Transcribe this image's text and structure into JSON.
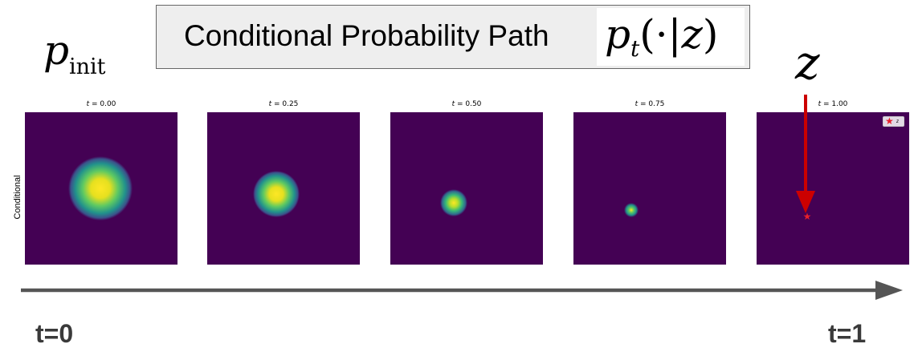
{
  "title": {
    "text": "Conditional Probability Path",
    "math": {
      "p": "p",
      "sub": "t",
      "open": "(·|",
      "var": "z",
      "close": ")"
    }
  },
  "p_init": {
    "p": "p",
    "sub": "init"
  },
  "z_label": "z",
  "row_label": "Conditional",
  "panels": [
    {
      "t_label": "t",
      "value": "= 0.00",
      "t": 0.0,
      "spread": 1.0
    },
    {
      "t_label": "t",
      "value": "= 0.25",
      "t": 0.25,
      "spread": 0.75
    },
    {
      "t_label": "t",
      "value": "= 0.50",
      "t": 0.5,
      "spread": 0.5
    },
    {
      "t_label": "t",
      "value": "= 0.75",
      "t": 0.75,
      "spread": 0.25
    },
    {
      "t_label": "t",
      "value": "= 1.00",
      "t": 1.0,
      "spread": 0.0
    }
  ],
  "legend": {
    "label": "z"
  },
  "timeline": {
    "start_label": "t=0",
    "end_label": "t=1"
  },
  "colors": {
    "viridis_bg": "#440154",
    "viridis_green": "#21918c",
    "viridis_lime": "#5ec962",
    "viridis_yellow": "#fde725",
    "arrow_red": "#cc0000",
    "star_red": "#e8202a",
    "timeline_gray": "#555555"
  }
}
